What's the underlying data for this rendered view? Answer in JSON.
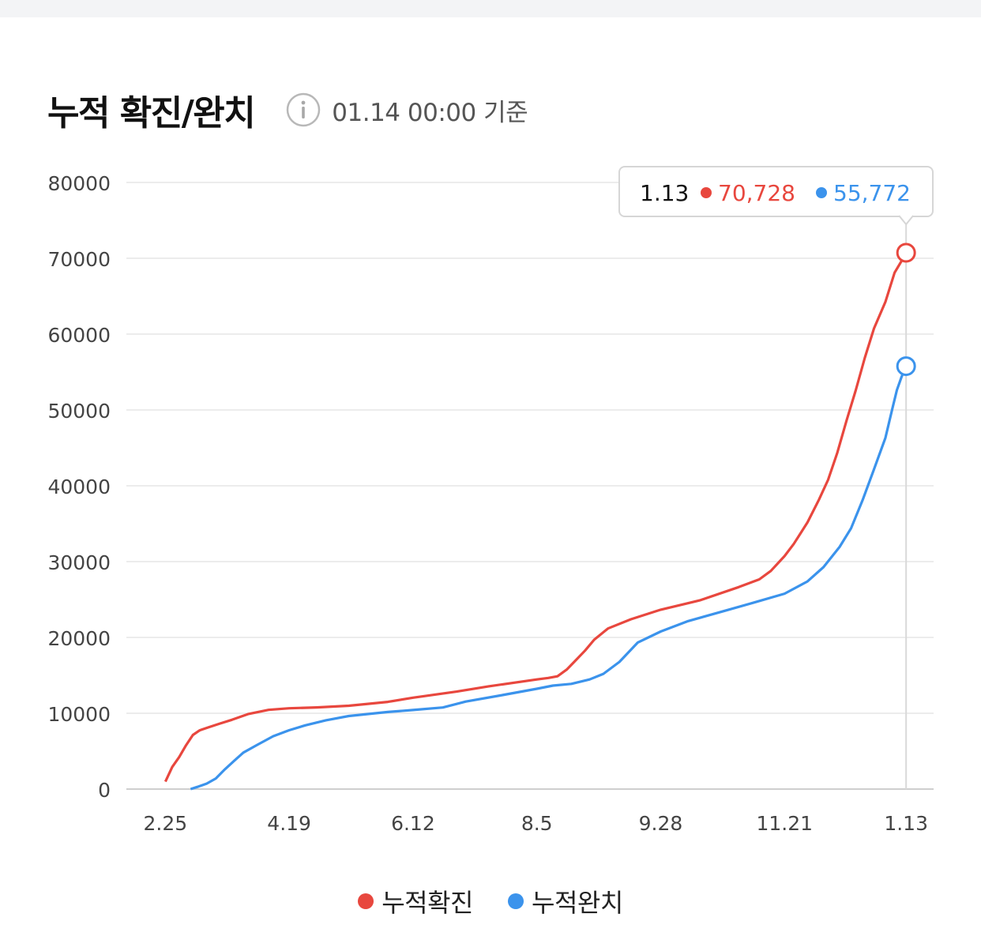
{
  "header": {
    "title": "누적 확진/완치",
    "timestamp": "01.14 00:00 기준",
    "info_icon": "info-icon"
  },
  "colors": {
    "confirmed": "#e8473e",
    "recovered": "#3b93ec",
    "grid": "#ececec",
    "axis": "#cfcfcf",
    "tick_text": "#444444"
  },
  "tooltip": {
    "date": "1.13",
    "confirmed": "70,728",
    "recovered": "55,772"
  },
  "legend": {
    "confirmed_label": "누적확진",
    "recovered_label": "누적완치"
  },
  "chart_data": {
    "type": "line",
    "title": "누적 확진/완치",
    "xlabel": "",
    "ylabel": "",
    "ylim": [
      0,
      80000
    ],
    "y_ticks": [
      0,
      10000,
      20000,
      30000,
      40000,
      50000,
      60000,
      70000,
      80000
    ],
    "x_ticks": [
      "2.25",
      "4.19",
      "6.12",
      "8.5",
      "9.28",
      "11.21",
      "1.13"
    ],
    "x_range": [
      "2020-02-08",
      "2021-01-25"
    ],
    "grid": true,
    "legend": "bottom-center",
    "series": [
      {
        "name": "누적확진",
        "points": [
          [
            "2020-02-25",
            977
          ],
          [
            "2020-02-28",
            2931
          ],
          [
            "2020-03-02",
            4212
          ],
          [
            "2020-03-05",
            5766
          ],
          [
            "2020-03-08",
            7134
          ],
          [
            "2020-03-11",
            7755
          ],
          [
            "2020-03-15",
            8162
          ],
          [
            "2020-03-20",
            8652
          ],
          [
            "2020-03-25",
            9137
          ],
          [
            "2020-04-01",
            9887
          ],
          [
            "2020-04-10",
            10450
          ],
          [
            "2020-04-19",
            10661
          ],
          [
            "2020-05-01",
            10774
          ],
          [
            "2020-05-15",
            10991
          ],
          [
            "2020-06-01",
            11503
          ],
          [
            "2020-06-12",
            12051
          ],
          [
            "2020-07-01",
            12850
          ],
          [
            "2020-07-15",
            13551
          ],
          [
            "2020-08-05",
            14456
          ],
          [
            "2020-08-10",
            14660
          ],
          [
            "2020-08-14",
            14873
          ],
          [
            "2020-08-18",
            15761
          ],
          [
            "2020-08-22",
            17002
          ],
          [
            "2020-08-26",
            18265
          ],
          [
            "2020-08-30",
            19700
          ],
          [
            "2020-09-05",
            21177
          ],
          [
            "2020-09-15",
            22391
          ],
          [
            "2020-09-28",
            23661
          ],
          [
            "2020-10-15",
            24889
          ],
          [
            "2020-11-01",
            26635
          ],
          [
            "2020-11-10",
            27653
          ],
          [
            "2020-11-15",
            28769
          ],
          [
            "2020-11-21",
            30733
          ],
          [
            "2020-11-25",
            32318
          ],
          [
            "2020-12-01",
            35163
          ],
          [
            "2020-12-06",
            38161
          ],
          [
            "2020-12-10",
            40786
          ],
          [
            "2020-12-14",
            44364
          ],
          [
            "2020-12-18",
            48570
          ],
          [
            "2020-12-22",
            52550
          ],
          [
            "2020-12-26",
            56872
          ],
          [
            "2020-12-30",
            60740
          ],
          [
            "2021-01-04",
            64264
          ],
          [
            "2021-01-08",
            68099
          ],
          [
            "2021-01-11",
            69650
          ],
          [
            "2021-01-13",
            70728
          ]
        ]
      },
      {
        "name": "누적완치",
        "points": [
          [
            "2020-03-07",
            0
          ],
          [
            "2020-03-10",
            288
          ],
          [
            "2020-03-14",
            714
          ],
          [
            "2020-03-18",
            1401
          ],
          [
            "2020-03-22",
            2612
          ],
          [
            "2020-03-26",
            3730
          ],
          [
            "2020-03-30",
            4811
          ],
          [
            "2020-04-05",
            5828
          ],
          [
            "2020-04-12",
            6973
          ],
          [
            "2020-04-19",
            7757
          ],
          [
            "2020-04-26",
            8411
          ],
          [
            "2020-05-05",
            9072
          ],
          [
            "2020-05-15",
            9632
          ],
          [
            "2020-06-01",
            10162
          ],
          [
            "2020-06-12",
            10422
          ],
          [
            "2020-06-25",
            10760
          ],
          [
            "2020-07-05",
            11537
          ],
          [
            "2020-07-20",
            12348
          ],
          [
            "2020-08-05",
            13233
          ],
          [
            "2020-08-12",
            13642
          ],
          [
            "2020-08-20",
            13880
          ],
          [
            "2020-08-28",
            14461
          ],
          [
            "2020-09-03",
            15198
          ],
          [
            "2020-09-10",
            16773
          ],
          [
            "2020-09-18",
            19336
          ],
          [
            "2020-09-28",
            20785
          ],
          [
            "2020-10-10",
            22160
          ],
          [
            "2020-10-25",
            23428
          ],
          [
            "2020-11-08",
            24621
          ],
          [
            "2020-11-21",
            25773
          ],
          [
            "2020-12-01",
            27381
          ],
          [
            "2020-12-08",
            29272
          ],
          [
            "2020-12-15",
            31935
          ],
          [
            "2020-12-20",
            34401
          ],
          [
            "2020-12-25",
            38083
          ],
          [
            "2020-12-30",
            42166
          ],
          [
            "2021-01-04",
            46322
          ],
          [
            "2021-01-07",
            50149
          ],
          [
            "2021-01-09",
            52617
          ],
          [
            "2021-01-11",
            54356
          ],
          [
            "2021-01-13",
            55772
          ]
        ]
      }
    ],
    "highlight": {
      "x": "2021-01-13",
      "confirmed": 70728,
      "recovered": 55772
    }
  }
}
